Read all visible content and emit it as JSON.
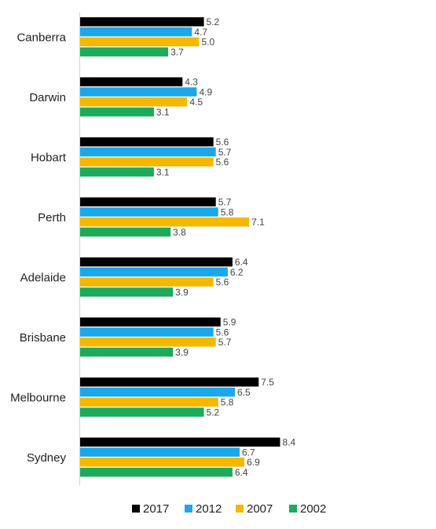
{
  "chart_data": {
    "type": "bar",
    "orientation": "horizontal",
    "title": "",
    "xlabel": "",
    "ylabel": "",
    "categories": [
      "Canberra",
      "Darwin",
      "Hobart",
      "Perth",
      "Adelaide",
      "Brisbane",
      "Melbourne",
      "Sydney"
    ],
    "series": [
      {
        "name": "2017",
        "color": "#000000",
        "values": [
          5.2,
          4.3,
          5.6,
          5.7,
          6.4,
          5.9,
          7.5,
          8.4
        ]
      },
      {
        "name": "2012",
        "color": "#1aa7ec",
        "values": [
          4.7,
          4.9,
          5.7,
          5.8,
          6.2,
          5.6,
          6.5,
          6.7
        ]
      },
      {
        "name": "2007",
        "color": "#f5b800",
        "values": [
          5.0,
          4.5,
          5.6,
          7.1,
          5.6,
          5.7,
          5.8,
          6.9
        ]
      },
      {
        "name": "2002",
        "color": "#1bab5a",
        "values": [
          3.7,
          3.1,
          3.1,
          3.8,
          3.9,
          3.9,
          5.2,
          6.4
        ]
      }
    ],
    "value_labels": true,
    "grid": false,
    "legend": "bottom"
  }
}
